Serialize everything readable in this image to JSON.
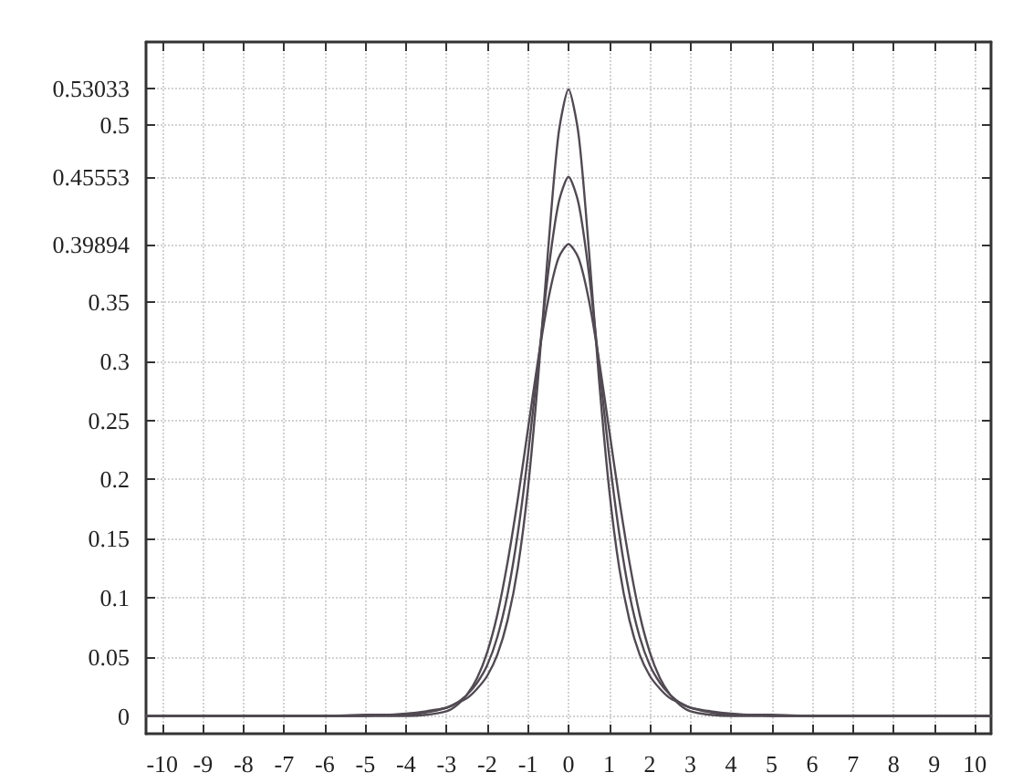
{
  "chart_data": {
    "type": "line",
    "x": [
      -10.4,
      -10,
      -9,
      -8,
      -7,
      -6,
      -5,
      -4.5,
      -4,
      -3.5,
      -3,
      -2.75,
      -2.5,
      -2.25,
      -2,
      -1.75,
      -1.5,
      -1.25,
      -1,
      -0.75,
      -0.5,
      -0.25,
      0,
      0.25,
      0.5,
      0.75,
      1,
      1.25,
      1.5,
      1.75,
      2,
      2.25,
      2.5,
      2.75,
      3,
      3.5,
      4,
      4.5,
      5,
      6,
      7,
      8,
      9,
      10,
      10.4
    ],
    "series": [
      {
        "color": "#514a52",
        "values": [
          0,
          0,
          0,
          0,
          0,
          0,
          0.001,
          0.001,
          0.002,
          0.004,
          0.007,
          0.011,
          0.015,
          0.023,
          0.034,
          0.052,
          0.081,
          0.125,
          0.192,
          0.285,
          0.395,
          0.491,
          0.53,
          0.491,
          0.395,
          0.285,
          0.192,
          0.125,
          0.081,
          0.052,
          0.034,
          0.023,
          0.015,
          0.011,
          0.007,
          0.004,
          0.002,
          0.001,
          0.001,
          0,
          0,
          0,
          0,
          0,
          0
        ]
      },
      {
        "color": "#514a52",
        "values": [
          0,
          0,
          0,
          0,
          0,
          0,
          0,
          0.001,
          0.001,
          0.003,
          0.007,
          0.011,
          0.018,
          0.028,
          0.043,
          0.067,
          0.103,
          0.154,
          0.22,
          0.297,
          0.375,
          0.433,
          0.456,
          0.433,
          0.375,
          0.297,
          0.22,
          0.154,
          0.103,
          0.067,
          0.043,
          0.028,
          0.018,
          0.011,
          0.007,
          0.003,
          0.001,
          0.001,
          0,
          0,
          0,
          0,
          0,
          0,
          0
        ]
      },
      {
        "color": "#514a52",
        "values": [
          0,
          0,
          0,
          0,
          0,
          0,
          0,
          0,
          0,
          0.001,
          0.004,
          0.009,
          0.018,
          0.032,
          0.054,
          0.086,
          0.13,
          0.183,
          0.242,
          0.301,
          0.352,
          0.387,
          0.399,
          0.387,
          0.352,
          0.301,
          0.242,
          0.183,
          0.13,
          0.086,
          0.054,
          0.032,
          0.018,
          0.009,
          0.004,
          0.001,
          0,
          0,
          0,
          0,
          0,
          0,
          0,
          0,
          0
        ]
      }
    ],
    "xlim": [
      -10.4,
      10.4
    ],
    "xticks": [
      -10,
      -9,
      -8,
      -7,
      -6,
      -5,
      -4,
      -3,
      -2,
      -1,
      0,
      1,
      2,
      3,
      4,
      5,
      6,
      7,
      8,
      9,
      10
    ],
    "ylim": [
      -0.015,
      0.57
    ],
    "yticks": [
      0,
      0.05,
      0.1,
      0.15,
      0.2,
      0.25,
      0.3,
      0.35,
      0.39894,
      0.45553,
      0.5,
      0.53033
    ],
    "grid": true,
    "marker": "none"
  }
}
